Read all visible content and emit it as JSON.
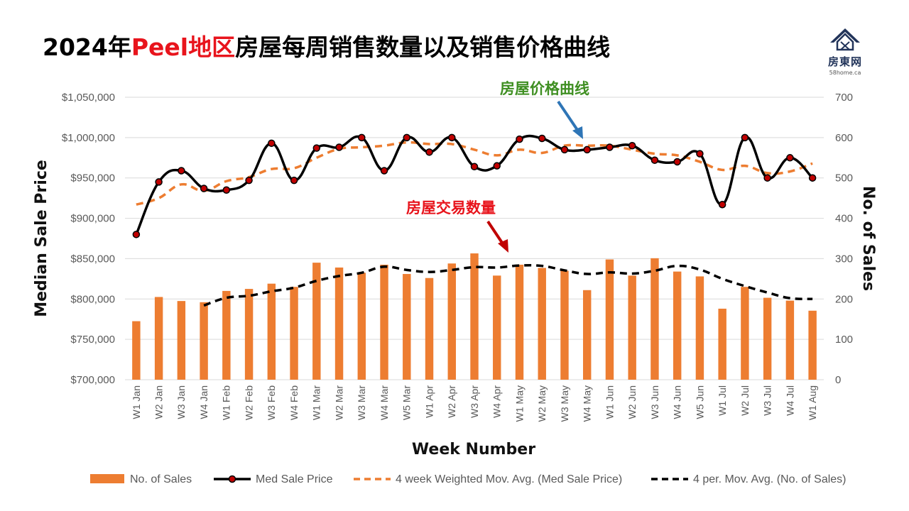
{
  "page": {
    "title_part1": "2024年",
    "title_part2": "Peel地区",
    "title_part3": "房屋每周销售数量以及销售价格曲线",
    "logo_name": "房東网",
    "logo_url": "58home.ca"
  },
  "colors": {
    "bar": "#ed7d31",
    "price_line": "#000000",
    "price_marker": "#c00000",
    "price_mavg": "#ed7d31",
    "sales_mavg": "#000000",
    "annot_price": "#3f8f22",
    "annot_sales": "#e8141c",
    "arrow_price": "#2e75b6",
    "arrow_sales": "#c00000",
    "grid": "#d9d9d9"
  },
  "chart_data": {
    "type": "bar",
    "xlabel": "Week Number",
    "ylabel": "Median Sale Price",
    "y2label": "No. of Sales",
    "ylim": [
      700000,
      1050000
    ],
    "y2lim": [
      0,
      700
    ],
    "y_ticks": [
      "$700,000",
      "$750,000",
      "$800,000",
      "$850,000",
      "$900,000",
      "$950,000",
      "$1,000,000",
      "$1,050,000"
    ],
    "y2_ticks": [
      "0",
      "100",
      "200",
      "300",
      "400",
      "500",
      "600",
      "700"
    ],
    "grid": true,
    "legend_position": "bottom",
    "categories": [
      "W1 Jan",
      "W2 Jan",
      "W3 Jan",
      "W4 Jan",
      "W1 Feb",
      "W2 Feb",
      "W3 Feb",
      "W4 Feb",
      "W1 Mar",
      "W2 Mar",
      "W3 Mar",
      "W4 Mar",
      "W5 Mar",
      "W1 Apr",
      "W2 Apr",
      "W3 Apr",
      "W4 Apr",
      "W1 May",
      "W2 May",
      "W3 May",
      "W4 May",
      "W1 Jun",
      "W2 Jun",
      "W3 Jun",
      "W4 Jun",
      "W5 Jun",
      "W1 Jul",
      "W2 Jul",
      "W3 Jul",
      "W4 Jul",
      "W1 Aug"
    ],
    "series": [
      {
        "name": "No. of Sales",
        "type": "bar",
        "axis": "right",
        "values": [
          145,
          205,
          195,
          192,
          220,
          225,
          238,
          230,
          290,
          278,
          265,
          285,
          262,
          252,
          288,
          313,
          258,
          285,
          277,
          270,
          222,
          298,
          258,
          301,
          268,
          256,
          176,
          230,
          203,
          196,
          171
        ]
      },
      {
        "name": "Med Sale Price",
        "type": "line",
        "axis": "left",
        "values": [
          880000,
          945000,
          959000,
          937000,
          935000,
          947000,
          993000,
          947000,
          987000,
          988000,
          1000000,
          959000,
          1000000,
          982000,
          1000000,
          964000,
          965000,
          998000,
          999000,
          985000,
          985000,
          988000,
          990000,
          972000,
          970000,
          980000,
          917000,
          1000000,
          950000,
          975000,
          950000
        ]
      },
      {
        "name": "4 week Weighted Mov. Avg. (Med Sale Price)",
        "type": "dashed-line",
        "axis": "left",
        "values": [
          917000,
          925000,
          942000,
          934000,
          946000,
          951000,
          961000,
          962000,
          975000,
          986000,
          988000,
          990000,
          994000,
          992000,
          992000,
          985000,
          978000,
          985000,
          981000,
          990000,
          990000,
          990000,
          985000,
          980000,
          978000,
          970000,
          960000,
          965000,
          956000,
          958000,
          968000
        ]
      },
      {
        "name": "4 per. Mov. Avg. (No. of Sales)",
        "type": "dashed-line",
        "axis": "right",
        "values": [
          null,
          null,
          null,
          184,
          203,
          208,
          219,
          228,
          245,
          257,
          265,
          280,
          272,
          267,
          272,
          279,
          278,
          283,
          282,
          271,
          262,
          266,
          263,
          270,
          282,
          273,
          250,
          232,
          216,
          202,
          200
        ]
      }
    ],
    "annotations": [
      "房屋价格曲线",
      "房屋交易数量"
    ]
  }
}
